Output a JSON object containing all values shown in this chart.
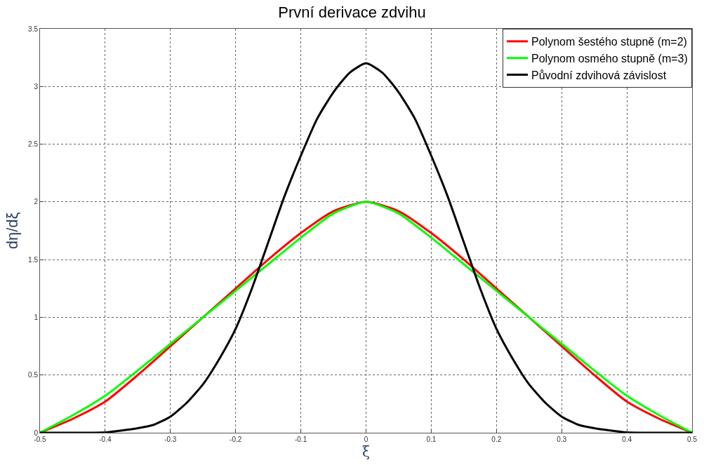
{
  "chart_data": {
    "type": "line",
    "title": "První derivace zdvihu",
    "xlabel": "ξ",
    "ylabel": "dη/dξ",
    "xlim": [
      -0.5,
      0.5
    ],
    "xticks": [
      -0.5,
      -0.4,
      -0.3,
      -0.2,
      -0.1,
      0,
      0.1,
      0.2,
      0.3,
      0.4,
      0.5
    ],
    "ylim": [
      0,
      3.5
    ],
    "yticks": [
      0,
      0.5,
      1,
      1.5,
      2,
      2.5,
      3,
      3.5
    ],
    "grid": true,
    "legend": "top right",
    "line_style": "solid",
    "series": [
      {
        "name": "Polynom šestého stupně (m=2)",
        "color": "#ff0000",
        "x": [
          -0.5,
          -0.45,
          -0.4,
          -0.35,
          -0.3,
          -0.25,
          -0.2,
          -0.15,
          -0.1,
          -0.05,
          0,
          0.05,
          0.1,
          0.15,
          0.2,
          0.25,
          0.3,
          0.35,
          0.4,
          0.45,
          0.5
        ],
        "values": [
          0,
          0.12,
          0.27,
          0.5,
          0.75,
          1.0,
          1.25,
          1.5,
          1.73,
          1.92,
          2,
          1.92,
          1.73,
          1.5,
          1.25,
          1.0,
          0.75,
          0.5,
          0.27,
          0.12,
          0
        ]
      },
      {
        "name": "Polynom osmého stupně (m=3)",
        "color": "#00ff00",
        "x": [
          -0.5,
          -0.45,
          -0.4,
          -0.35,
          -0.3,
          -0.25,
          -0.2,
          -0.15,
          -0.1,
          -0.05,
          0,
          0.05,
          0.1,
          0.15,
          0.2,
          0.25,
          0.3,
          0.35,
          0.4,
          0.45,
          0.5
        ],
        "values": [
          0,
          0.15,
          0.32,
          0.54,
          0.77,
          1.0,
          1.23,
          1.46,
          1.69,
          1.9,
          2,
          1.9,
          1.69,
          1.46,
          1.23,
          1.0,
          0.77,
          0.54,
          0.32,
          0.15,
          0
        ]
      },
      {
        "name": "Původní zdvihová závislost",
        "color": "#000000",
        "x": [
          -0.5,
          -0.45,
          -0.4,
          -0.35,
          -0.325,
          -0.3,
          -0.275,
          -0.25,
          -0.225,
          -0.2,
          -0.175,
          -0.15,
          -0.125,
          -0.1,
          -0.075,
          -0.05,
          -0.025,
          0,
          0.025,
          0.05,
          0.075,
          0.1,
          0.125,
          0.15,
          0.175,
          0.2,
          0.225,
          0.25,
          0.275,
          0.3,
          0.325,
          0.35,
          0.4,
          0.45,
          0.5
        ],
        "values": [
          0,
          0,
          0.003,
          0.04,
          0.07,
          0.14,
          0.26,
          0.42,
          0.64,
          0.9,
          1.25,
          1.65,
          2.05,
          2.4,
          2.72,
          2.95,
          3.12,
          3.2,
          3.12,
          2.95,
          2.72,
          2.4,
          2.05,
          1.65,
          1.25,
          0.9,
          0.64,
          0.42,
          0.26,
          0.14,
          0.07,
          0.04,
          0.003,
          0,
          0
        ]
      }
    ]
  }
}
